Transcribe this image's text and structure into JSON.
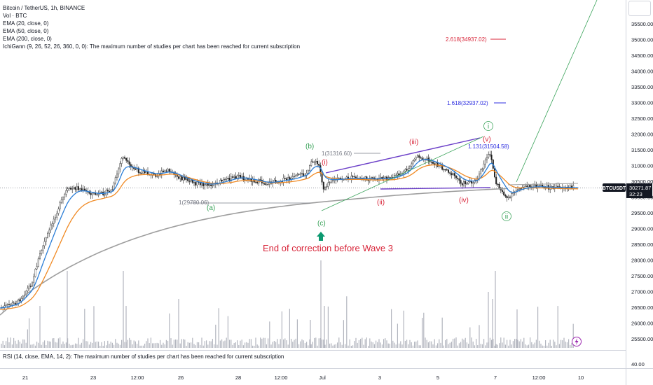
{
  "legend": {
    "title": "Bitcoin / TetherUS, 1h, BINANCE",
    "lines": [
      "Vol · BTC",
      "EMA (20, close, 0)",
      "EMA (50, close, 0)",
      "EMA (200, close, 0)",
      "IchiGann (9, 26, 52, 26, 360, 0, 0): The maximum number of studies per chart has been reached for current subscription"
    ]
  },
  "rsi_legend": "RSI (14, close, EMA, 14, 2): The maximum number of studies per chart has been reached for current subscription",
  "price_axis": [
    "35500.00",
    "35000.00",
    "34500.00",
    "34000.00",
    "33500.00",
    "33000.00",
    "32500.00",
    "32000.00",
    "31500.00",
    "31000.00",
    "30500.00",
    "30000.00",
    "29500.00",
    "29000.00",
    "28500.00",
    "28000.00",
    "27500.00",
    "27000.00",
    "26500.00",
    "26000.00",
    "25500.00"
  ],
  "rsi_axis": "40.00",
  "time_axis": [
    "21",
    "23",
    "12:00",
    "26",
    "28",
    "12:00",
    "Jul",
    "3",
    "5",
    "7",
    "12:00",
    "10"
  ],
  "ticker_badge": {
    "symbol": "BTCUSDT",
    "price": "30271.87",
    "countdown": "32:23"
  },
  "annotations": {
    "fib_2618": "2.618(34937.02)",
    "fib_1618": "1.618(32937.02)",
    "fib_1131": "1.131(31504.58)",
    "fib_top": "1(31316.60)",
    "fib_bottom": "1(29780.06)",
    "wave_a": "(a)",
    "wave_b": "(b)",
    "wave_c": "(c)",
    "wave_i_red": "(i)",
    "wave_ii_red": "(ii)",
    "wave_iii_red": "(iii)",
    "wave_iv_red": "(iv)",
    "wave_v_red": "(v)",
    "wave_i_circle": "i",
    "wave_ii_circle": "ii",
    "note": "End of correction before Wave 3"
  },
  "colors": {
    "green": "#3aa35a",
    "red": "#d8263a",
    "blue": "#2d2ee0",
    "purple": "#6b3fc8",
    "ema20": "#2a7dd6",
    "ema50": "#f08a24",
    "ema200": "#9e9e9e",
    "teal_arrow": "#0c9970",
    "lightning": "#9c27b0"
  },
  "icons": {
    "arrow": "arrow-up-icon",
    "lightning": "lightning-icon"
  }
}
